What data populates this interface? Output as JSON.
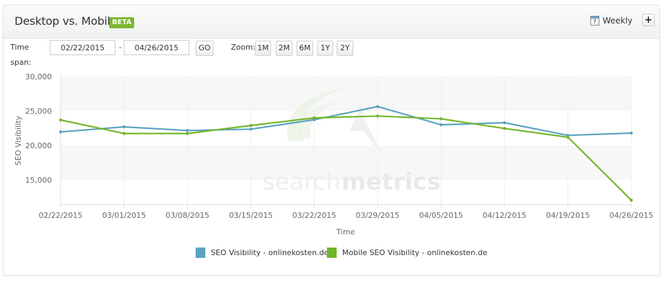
{
  "header": {
    "title": "Desktop vs. Mobile",
    "badge": "BETA",
    "interval_icon": "calendar-icon",
    "interval_icon_day": "7",
    "interval_label": "Weekly",
    "add_button_label": "+"
  },
  "controls": {
    "time_span_label": "Time span:",
    "start_date": "02/22/2015",
    "separator": "-",
    "end_date": "04/26/2015",
    "go_label": "GO",
    "zoom_label": "Zoom:",
    "zoom_options": [
      "1M",
      "2M",
      "6M",
      "1Y",
      "2Y"
    ]
  },
  "colors": {
    "desktop": "#5ba3bf",
    "mobile": "#72b52a",
    "beta_badge": "#7ab72e"
  },
  "watermark": "searchmetrics",
  "chart_data": {
    "type": "line",
    "title": "Desktop vs. Mobile",
    "xlabel": "Time",
    "ylabel": "SEO Visibility",
    "x": [
      "02/22/2015",
      "03/01/2015",
      "03/08/2015",
      "03/15/2015",
      "03/22/2015",
      "03/29/2015",
      "04/05/2015",
      "04/12/2015",
      "04/19/2015",
      "04/26/2015"
    ],
    "y_ticks": [
      "30,000",
      "25,000",
      "20,000",
      "15,000"
    ],
    "ylim": [
      11400,
      30000
    ],
    "grid": "alternating horizontal bands",
    "legend_position": "bottom",
    "series": [
      {
        "name": "SEO Visibility - onlinekosten.de",
        "color": "#5ba3bf",
        "values": [
          21970,
          22700,
          22170,
          22370,
          23740,
          25640,
          23000,
          23300,
          21470,
          21800
        ]
      },
      {
        "name": "Mobile SEO Visibility - onlinekosten.de",
        "color": "#72b52a",
        "values": [
          23700,
          21740,
          21740,
          22900,
          24000,
          24270,
          23870,
          22470,
          21200,
          12070
        ]
      }
    ]
  }
}
